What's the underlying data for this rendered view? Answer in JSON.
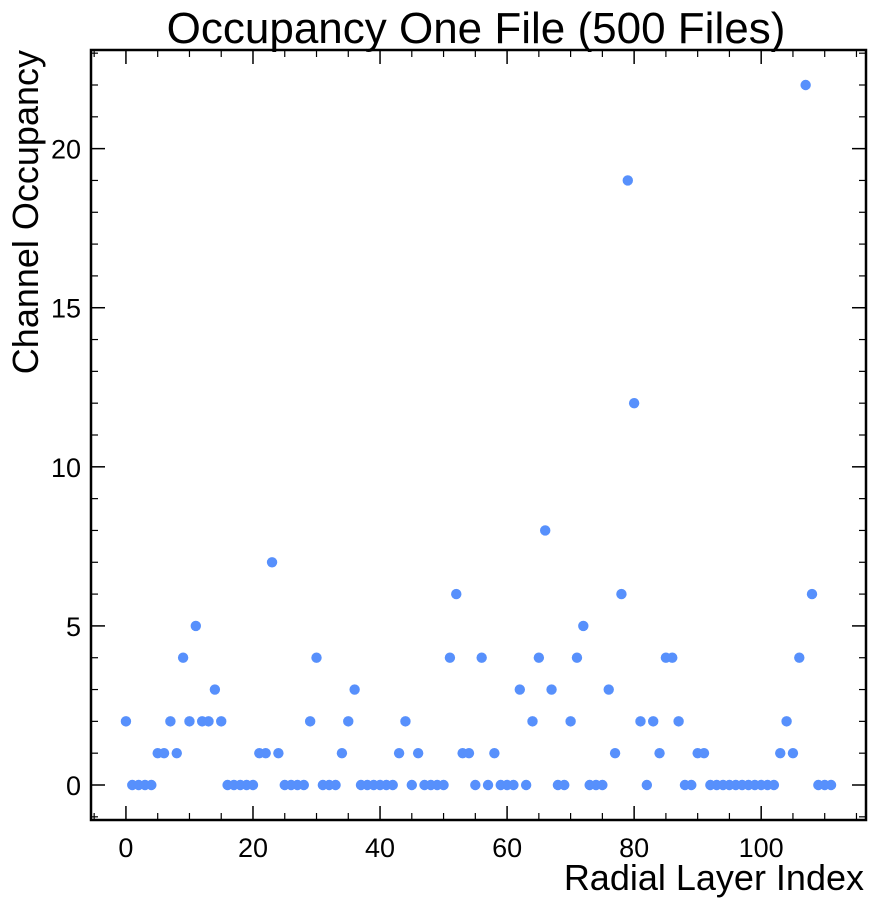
{
  "chart_data": {
    "type": "scatter",
    "title": "Occupancy One File (500 Files)",
    "xlabel": "Radial Layer Index",
    "ylabel": "Channel Occupancy",
    "xlim": [
      -5.5,
      116.5
    ],
    "ylim": [
      -1.1,
      23.1
    ],
    "xticks": [
      0,
      20,
      40,
      60,
      80,
      100
    ],
    "xtick_labels": [
      "0",
      "20",
      "40",
      "60",
      "80",
      "100"
    ],
    "yticks": [
      0,
      5,
      10,
      15,
      20
    ],
    "ytick_labels": [
      "0",
      "5",
      "10",
      "15",
      "20"
    ],
    "marker_color": "#5790fc",
    "grid": false,
    "x": [
      0,
      1,
      2,
      3,
      4,
      5,
      6,
      7,
      8,
      9,
      10,
      11,
      12,
      13,
      14,
      15,
      16,
      17,
      18,
      19,
      20,
      21,
      22,
      23,
      24,
      25,
      26,
      27,
      28,
      29,
      30,
      31,
      32,
      33,
      34,
      35,
      36,
      37,
      38,
      39,
      40,
      41,
      42,
      43,
      44,
      45,
      46,
      47,
      48,
      49,
      50,
      51,
      52,
      53,
      54,
      55,
      56,
      57,
      58,
      59,
      60,
      61,
      62,
      63,
      64,
      65,
      66,
      67,
      68,
      69,
      70,
      71,
      72,
      73,
      74,
      75,
      76,
      77,
      78,
      79,
      80,
      81,
      82,
      83,
      84,
      85,
      86,
      87,
      88,
      89,
      90,
      91,
      92,
      93,
      94,
      95,
      96,
      97,
      98,
      99,
      100,
      101,
      102,
      103,
      104,
      105,
      106,
      107,
      108,
      109,
      110,
      111
    ],
    "y": [
      2,
      0,
      0,
      0,
      0,
      1,
      1,
      2,
      1,
      4,
      2,
      5,
      2,
      2,
      3,
      2,
      0,
      0,
      0,
      0,
      0,
      1,
      1,
      7,
      1,
      0,
      0,
      0,
      0,
      2,
      4,
      0,
      0,
      0,
      1,
      2,
      3,
      0,
      0,
      0,
      0,
      0,
      0,
      1,
      2,
      0,
      1,
      0,
      0,
      0,
      0,
      4,
      6,
      1,
      1,
      0,
      4,
      0,
      1,
      0,
      0,
      0,
      3,
      0,
      2,
      4,
      8,
      3,
      0,
      0,
      2,
      4,
      5,
      0,
      0,
      0,
      3,
      1,
      6,
      19,
      12,
      2,
      0,
      2,
      1,
      4,
      4,
      2,
      0,
      0,
      1,
      1,
      0,
      0,
      0,
      0,
      0,
      0,
      0,
      0,
      0,
      0,
      0,
      1,
      2,
      1,
      4,
      22,
      6,
      0,
      0,
      0
    ]
  }
}
